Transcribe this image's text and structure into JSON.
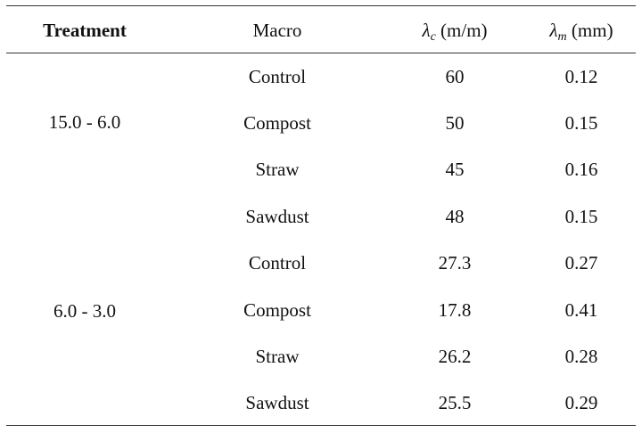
{
  "table": {
    "headers": {
      "treatment": "Treatment",
      "macro": "Macro",
      "lambda_c_symbol": "λ",
      "lambda_c_sub": "c",
      "lambda_c_unit": " (m/m)",
      "lambda_m_symbol": "λ",
      "lambda_m_sub": "m",
      "lambda_m_unit": " (mm)"
    },
    "groups": [
      {
        "treatment": "15.0 - 6.0",
        "rows": [
          {
            "macro": "Control",
            "lambda_c": "60",
            "lambda_m": "0.12"
          },
          {
            "macro": "Compost",
            "lambda_c": "50",
            "lambda_m": "0.15"
          },
          {
            "macro": "Straw",
            "lambda_c": "45",
            "lambda_m": "0.16"
          },
          {
            "macro": "Sawdust",
            "lambda_c": "48",
            "lambda_m": "0.15"
          }
        ]
      },
      {
        "treatment": "6.0 - 3.0",
        "rows": [
          {
            "macro": "Control",
            "lambda_c": "27.3",
            "lambda_m": "0.27"
          },
          {
            "macro": "Compost",
            "lambda_c": "17.8",
            "lambda_m": "0.41"
          },
          {
            "macro": "Straw",
            "lambda_c": "26.2",
            "lambda_m": "0.28"
          },
          {
            "macro": "Sawdust",
            "lambda_c": "25.5",
            "lambda_m": "0.29"
          }
        ]
      }
    ]
  }
}
